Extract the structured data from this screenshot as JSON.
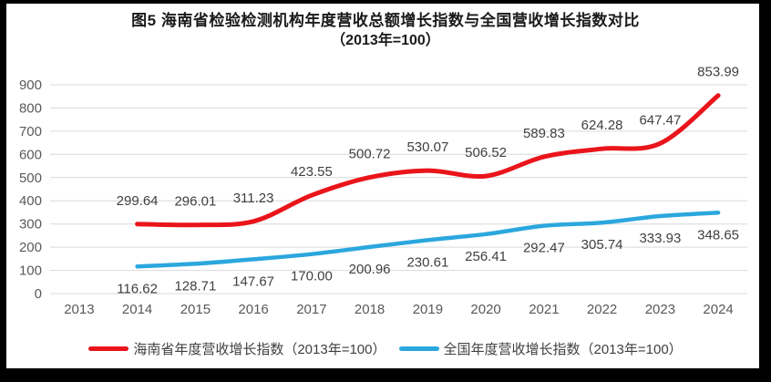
{
  "frame": {
    "border_color": "#000000",
    "canvas_color": "#ffffff"
  },
  "chart": {
    "title": "图5  海南省检验检测机构年度营收总额增长指数与全国营收增长指数对比",
    "subtitle": "（2013年=100）"
  },
  "chart_data": {
    "type": "line",
    "title": "图5  海南省检验检测机构年度营收总额增长指数与全国营收增长指数对比",
    "subtitle": "（2013年=100）",
    "categories": [
      "2013",
      "2014",
      "2015",
      "2016",
      "2017",
      "2018",
      "2019",
      "2020",
      "2021",
      "2022",
      "2023",
      "2024"
    ],
    "series": [
      {
        "name": "海南省年度营收增长指数（2013年=100）",
        "color": "#e9151b",
        "label_side": "above",
        "values": [
          null,
          299.64,
          296.01,
          311.23,
          423.55,
          500.72,
          530.07,
          506.52,
          589.83,
          624.28,
          647.47,
          853.99
        ]
      },
      {
        "name": "全国年度营收增长指数（2013年=100）",
        "color": "#2ba7de",
        "label_side": "below",
        "values": [
          null,
          116.62,
          128.71,
          147.67,
          170.0,
          200.96,
          230.61,
          256.41,
          292.47,
          305.74,
          333.93,
          348.65
        ]
      }
    ],
    "ylim": [
      0,
      900
    ],
    "ytick_step": 100,
    "ytick_labels": [
      "0",
      "100",
      "200",
      "300",
      "400",
      "500",
      "600",
      "700",
      "800",
      "900"
    ],
    "grid": true,
    "legend_position": "bottom",
    "colors": {
      "gridline": "#d9d9d9",
      "axis_tick_text": "#595959",
      "data_label_text": "#404040"
    }
  }
}
